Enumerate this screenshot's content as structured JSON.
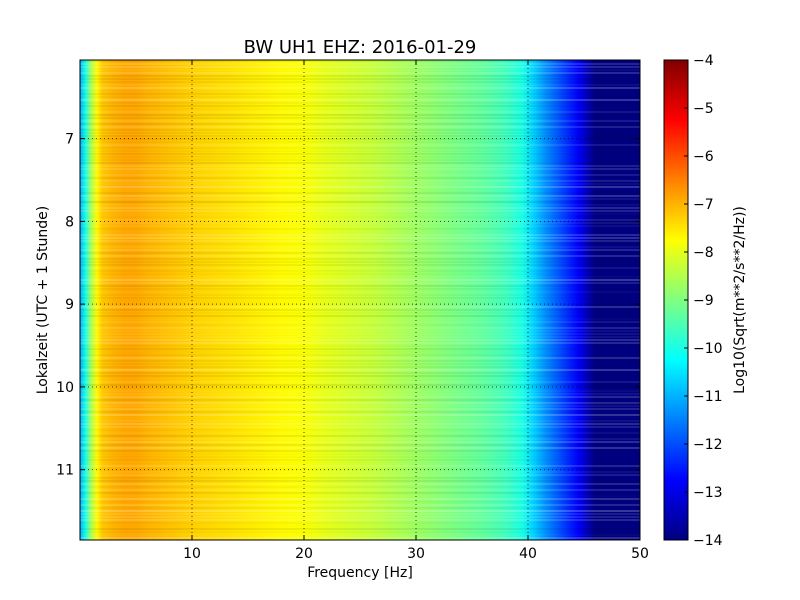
{
  "chart_data": {
    "type": "heatmap",
    "title": "BW UH1 EHZ: 2016-01-29",
    "xlabel": "Frequency [Hz]",
    "ylabel": "Lokalzeit (UTC + 1 Stunde)",
    "xlim": [
      0,
      50
    ],
    "ylim": [
      6.05,
      11.85
    ],
    "x_ticks": [
      10,
      20,
      30,
      40,
      50
    ],
    "x_tick_labels": [
      "10",
      "20",
      "30",
      "40",
      "50"
    ],
    "y_ticks": [
      7,
      8,
      9,
      10,
      11
    ],
    "y_tick_labels": [
      "7",
      "8",
      "9",
      "10",
      "11"
    ],
    "grid": true,
    "colormap": "jet",
    "colorbar": {
      "label": "Log10(Sqrt(m**2/s**2/Hz))",
      "range": [
        -14,
        -4
      ],
      "ticks": [
        -4,
        -5,
        -6,
        -7,
        -8,
        -9,
        -10,
        -11,
        -12,
        -13,
        -14
      ],
      "tick_labels": [
        "−4",
        "−5",
        "−6",
        "−7",
        "−8",
        "−9",
        "−10",
        "−11",
        "−12",
        "−13",
        "−14"
      ]
    },
    "spectrum_profile": {
      "frequency_hz": [
        0,
        0.5,
        1,
        1.5,
        2,
        3,
        4,
        5,
        6,
        8,
        10,
        12,
        14,
        16,
        18,
        20,
        22,
        24,
        26,
        28,
        30,
        32,
        34,
        36,
        38,
        39.5,
        40.5,
        41.5,
        42.5,
        43.5,
        44.5,
        45,
        45.5,
        46,
        50
      ],
      "log10_amplitude": [
        -11.0,
        -10.0,
        -8.6,
        -7.7,
        -7.2,
        -7.0,
        -6.9,
        -6.9,
        -7.0,
        -7.15,
        -7.3,
        -7.4,
        -7.5,
        -7.6,
        -7.7,
        -7.8,
        -8.0,
        -8.15,
        -8.3,
        -8.5,
        -8.7,
        -8.9,
        -9.1,
        -9.3,
        -9.6,
        -10.0,
        -10.7,
        -11.3,
        -11.8,
        -12.3,
        -12.8,
        -13.2,
        -13.6,
        -14.0,
        -14.0
      ]
    }
  }
}
